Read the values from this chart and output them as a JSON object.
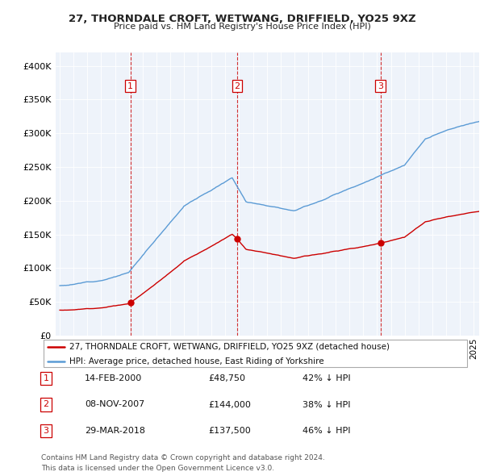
{
  "title": "27, THORNDALE CROFT, WETWANG, DRIFFIELD, YO25 9XZ",
  "subtitle": "Price paid vs. HM Land Registry's House Price Index (HPI)",
  "legend_line1": "27, THORNDALE CROFT, WETWANG, DRIFFIELD, YO25 9XZ (detached house)",
  "legend_line2": "HPI: Average price, detached house, East Riding of Yorkshire",
  "transactions": [
    {
      "num": 1,
      "date": "14-FEB-2000",
      "price": "£48,750",
      "pct": "42% ↓ HPI",
      "year": 2000.12,
      "value": 48750
    },
    {
      "num": 2,
      "date": "08-NOV-2007",
      "price": "£144,000",
      "pct": "38% ↓ HPI",
      "year": 2007.85,
      "value": 144000
    },
    {
      "num": 3,
      "date": "29-MAR-2018",
      "price": "£137,500",
      "pct": "46% ↓ HPI",
      "year": 2018.24,
      "value": 137500
    }
  ],
  "footnote1": "Contains HM Land Registry data © Crown copyright and database right 2024.",
  "footnote2": "This data is licensed under the Open Government Licence v3.0.",
  "price_color": "#cc0000",
  "hpi_color": "#5b9bd5",
  "plot_bg": "#eef3fa",
  "background_color": "#ffffff",
  "grid_color": "#ffffff",
  "ylim": [
    0,
    420000
  ],
  "yticks": [
    0,
    50000,
    100000,
    150000,
    200000,
    250000,
    300000,
    350000,
    400000
  ],
  "xlim_start": 1994.7,
  "xlim_end": 2025.4
}
